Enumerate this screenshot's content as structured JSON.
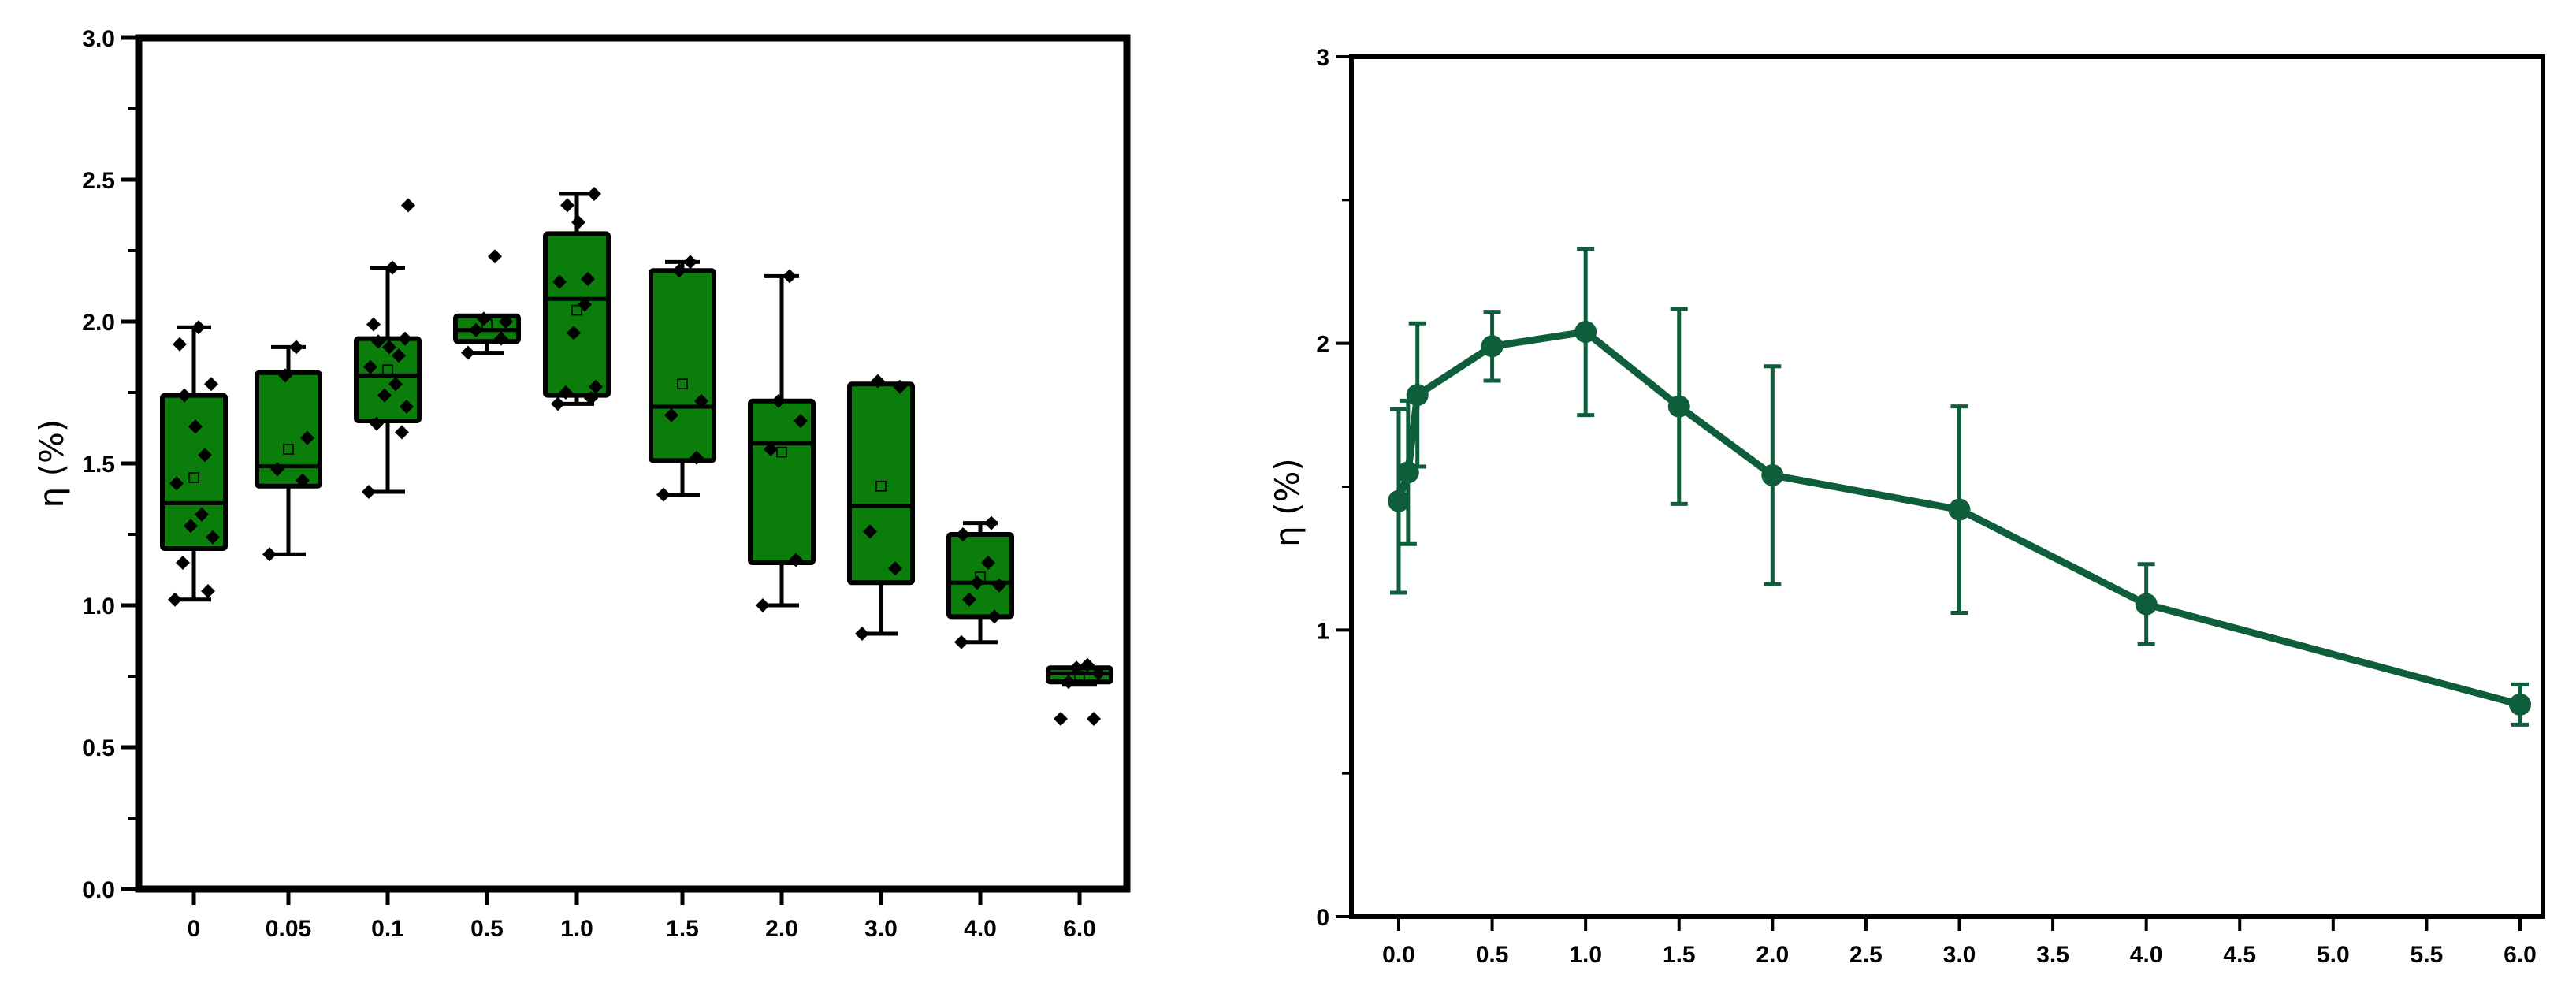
{
  "chart_data": [
    {
      "type": "box",
      "ylabel": "η (%)",
      "ylim": [
        0.0,
        3.0
      ],
      "y_ticks": [
        "0.0",
        "0.5",
        "1.0",
        "1.5",
        "2.0",
        "2.5",
        "3.0"
      ],
      "categories": [
        "0",
        "0.05",
        "0.1",
        "0.5",
        "1.0",
        "1.5",
        "2.0",
        "3.0",
        "4.0",
        "6.0"
      ],
      "colors": {
        "box_fill": "#0a7d0a",
        "outline": "#000000"
      },
      "boxes": [
        {
          "category": "0",
          "whisker_low": 1.02,
          "q1": 1.2,
          "median": 1.36,
          "q3": 1.74,
          "whisker_high": 1.98,
          "mean": 1.45,
          "points": [
            1.02,
            1.05,
            1.15,
            1.24,
            1.28,
            1.32,
            1.43,
            1.53,
            1.63,
            1.74,
            1.78,
            1.92,
            1.98
          ]
        },
        {
          "category": "0.05",
          "whisker_low": 1.18,
          "q1": 1.42,
          "median": 1.49,
          "q3": 1.82,
          "whisker_high": 1.91,
          "mean": 1.55,
          "points": [
            1.18,
            1.44,
            1.48,
            1.59,
            1.81,
            1.91
          ]
        },
        {
          "category": "0.1",
          "whisker_low": 1.4,
          "q1": 1.65,
          "median": 1.81,
          "q3": 1.94,
          "whisker_high": 2.19,
          "mean": 1.83,
          "points": [
            1.4,
            1.61,
            1.64,
            1.7,
            1.74,
            1.78,
            1.84,
            1.88,
            1.91,
            1.93,
            1.94,
            1.99,
            2.19,
            2.41
          ]
        },
        {
          "category": "0.5",
          "whisker_low": 1.89,
          "q1": 1.93,
          "median": 1.97,
          "q3": 2.02,
          "whisker_high": 2.02,
          "mean": 1.99,
          "points": [
            1.89,
            1.94,
            1.97,
            2.0,
            2.01,
            2.23
          ]
        },
        {
          "category": "1.0",
          "whisker_low": 1.71,
          "q1": 1.74,
          "median": 2.08,
          "q3": 2.31,
          "whisker_high": 2.45,
          "mean": 2.04,
          "points": [
            1.71,
            1.73,
            1.75,
            1.77,
            1.96,
            2.06,
            2.14,
            2.15,
            2.35,
            2.41,
            2.45
          ]
        },
        {
          "category": "1.5",
          "whisker_low": 1.39,
          "q1": 1.51,
          "median": 1.7,
          "q3": 2.18,
          "whisker_high": 2.21,
          "mean": 1.78,
          "points": [
            1.39,
            1.52,
            1.67,
            1.72,
            2.18,
            2.21
          ]
        },
        {
          "category": "2.0",
          "whisker_low": 1.0,
          "q1": 1.15,
          "median": 1.57,
          "q3": 1.72,
          "whisker_high": 2.16,
          "mean": 1.54,
          "points": [
            1.0,
            1.16,
            1.55,
            1.65,
            1.72,
            2.16
          ]
        },
        {
          "category": "3.0",
          "whisker_low": 0.9,
          "q1": 1.08,
          "median": 1.35,
          "q3": 1.78,
          "whisker_high": 1.78,
          "mean": 1.42,
          "points": [
            0.9,
            1.13,
            1.26,
            1.77,
            1.79
          ]
        },
        {
          "category": "4.0",
          "whisker_low": 0.87,
          "q1": 0.96,
          "median": 1.08,
          "q3": 1.25,
          "whisker_high": 1.29,
          "mean": 1.1,
          "points": [
            0.87,
            0.96,
            1.02,
            1.07,
            1.08,
            1.15,
            1.25,
            1.29
          ]
        },
        {
          "category": "6.0",
          "whisker_low": 0.72,
          "q1": 0.73,
          "median": 0.76,
          "q3": 0.78,
          "whisker_high": 0.78,
          "mean": 0.75,
          "points": [
            0.6,
            0.6,
            0.73,
            0.76,
            0.78,
            0.79
          ]
        }
      ]
    },
    {
      "type": "line",
      "ylabel": "η (%)",
      "xlim": [
        0.0,
        6.0
      ],
      "ylim": [
        0,
        3
      ],
      "x_ticks": [
        "0.0",
        "0.5",
        "1.0",
        "1.5",
        "2.0",
        "2.5",
        "3.0",
        "3.5",
        "4.0",
        "4.5",
        "5.0",
        "5.5",
        "6.0"
      ],
      "y_ticks": [
        "0",
        "1",
        "2",
        "3"
      ],
      "colors": {
        "line": "#0e5e3c"
      },
      "series": [
        {
          "x": [
            0,
            0.05,
            0.1,
            0.5,
            1.0,
            1.5,
            2.0,
            3.0,
            4.0,
            6.0
          ],
          "y": [
            1.45,
            1.55,
            1.82,
            1.99,
            2.04,
            1.78,
            1.54,
            1.42,
            1.09,
            0.74
          ],
          "y_err": [
            0.32,
            0.25,
            0.25,
            0.12,
            0.29,
            0.34,
            0.38,
            0.36,
            0.14,
            0.07
          ]
        }
      ]
    }
  ]
}
